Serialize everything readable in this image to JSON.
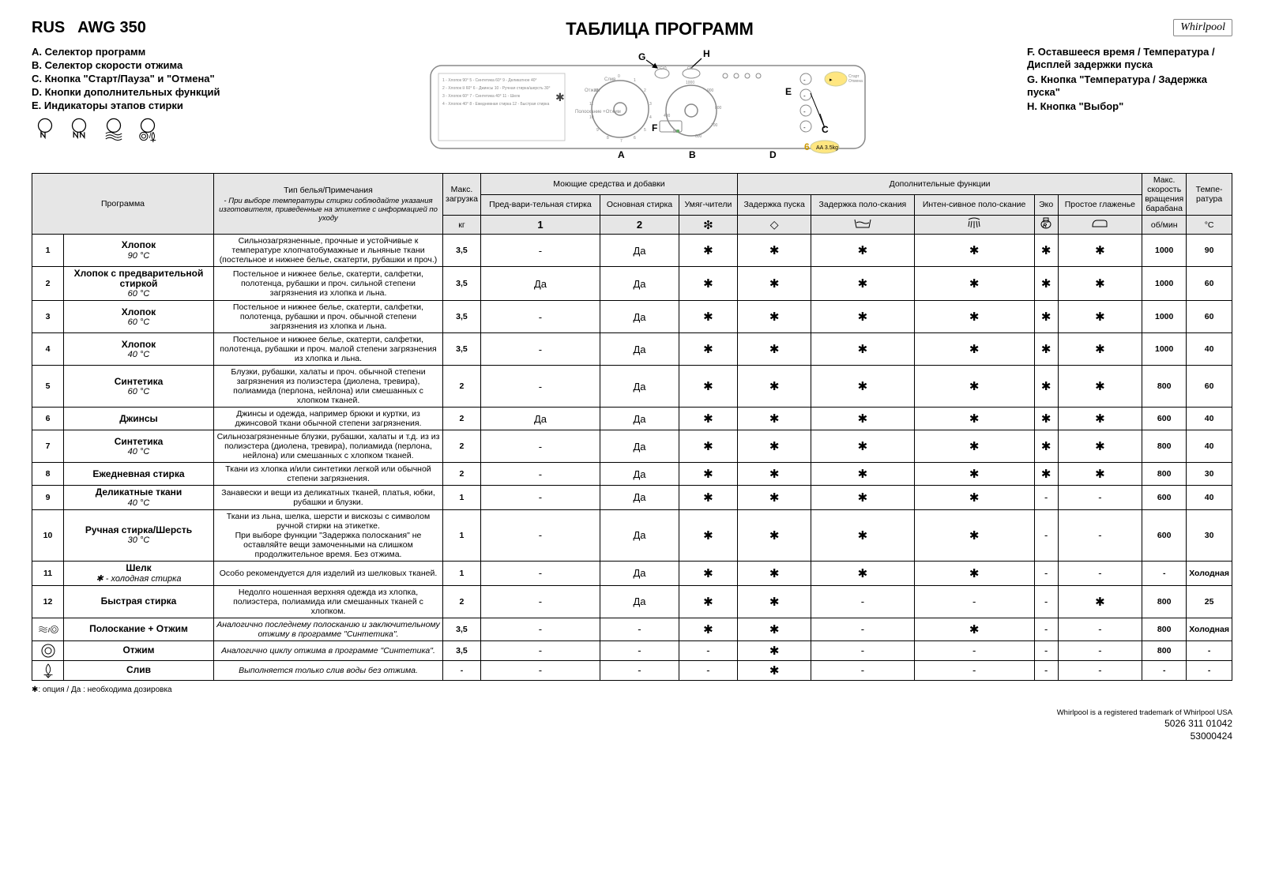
{
  "model_prefix": "RUS",
  "model": "AWG 350",
  "title": "ТАБЛИЦА ПРОГРАММ",
  "logo_text": "Whirlpool",
  "legend_left": {
    "A": "A. Селектор программ",
    "B": "B. Селектор скорости отжима",
    "C": "C. Кнопка \"Старт/Пауза\" и \"Отмена\"",
    "D": "D. Кнопки дополнительных функций",
    "E": "E. Индикаторы этапов стирки"
  },
  "legend_right": {
    "F": "F. Оставшееся время / Температура /Дисплей задержки пуска",
    "G": "G. Кнопка \"Температура / Задержка пуска\"",
    "H": "H. Кнопка \"Выбор\""
  },
  "table_head": {
    "program": "Программа",
    "notes_header": "Тип белья/Примечания",
    "notes_sub": "- При выборе температуры стирки соблюдайте указания изготовителя, приведенные на этикетке с информацией по уходу",
    "load": "Макс. загрузка",
    "load_unit": "кг",
    "detergents": "Моющие средства и добавки",
    "det1": "Пред-вари-тельная стирка",
    "det1n": "1",
    "det2": "Основная стирка",
    "det2n": "2",
    "det3": "Умяг-чители",
    "extras": "Дополнительные функции",
    "ex1": "Задержка пуска",
    "ex2": "Задержка поло-скания",
    "ex3": "Интен-сивное поло-скание",
    "ex4": "Эко",
    "ex5": "Простое глаженье",
    "rpm": "Макс. скорость вращения барабана",
    "rpm_unit": "об/мин",
    "temp": "Темпе-ратура",
    "temp_unit": "°C"
  },
  "icons": {
    "star": "✱",
    "dash": "-",
    "diamond": "◇"
  },
  "rows": [
    {
      "num": "1",
      "name": "Хлопок",
      "temp": "90 °C",
      "notes": "Сильнозагрязненные, прочные и устойчивые к температуре хлопчатобумажные и льняные ткани (постельное и нижнее белье, скатерти, рубашки и проч.)",
      "load": "3,5",
      "c": [
        "-",
        "Да",
        "*",
        "*",
        "*",
        "*",
        "*",
        "*"
      ],
      "rpm": "1000",
      "tc": "90"
    },
    {
      "num": "2",
      "name": "Хлопок с предварительной стиркой",
      "temp": "60 °C",
      "notes": "Постельное и нижнее белье, скатерти, салфетки, полотенца, рубашки и проч. сильной степени загрязнения из хлопка и льна.",
      "load": "3,5",
      "c": [
        "Да",
        "Да",
        "*",
        "*",
        "*",
        "*",
        "*",
        "*"
      ],
      "rpm": "1000",
      "tc": "60"
    },
    {
      "num": "3",
      "name": "Хлопок",
      "temp": "60 °C",
      "notes": "Постельное и нижнее белье, скатерти, салфетки, полотенца, рубашки и проч. обычной степени загрязнения из хлопка и льна.",
      "load": "3,5",
      "c": [
        "-",
        "Да",
        "*",
        "*",
        "*",
        "*",
        "*",
        "*"
      ],
      "rpm": "1000",
      "tc": "60"
    },
    {
      "num": "4",
      "name": "Хлопок",
      "temp": "40 °C",
      "notes": "Постельное и нижнее белье, скатерти, салфетки, полотенца, рубашки и проч. малой степени загрязнения из хлопка и льна.",
      "load": "3,5",
      "c": [
        "-",
        "Да",
        "*",
        "*",
        "*",
        "*",
        "*",
        "*"
      ],
      "rpm": "1000",
      "tc": "40"
    },
    {
      "num": "5",
      "name": "Синтетика",
      "temp": "60 °C",
      "notes": "Блузки, рубашки, халаты и проч. обычной степени загрязнения из полиэстера (диолена, тревира), полиамида (перлона, нейлона) или смешанных с хлопком тканей.",
      "load": "2",
      "c": [
        "-",
        "Да",
        "*",
        "*",
        "*",
        "*",
        "*",
        "*"
      ],
      "rpm": "800",
      "tc": "60"
    },
    {
      "num": "6",
      "name": "Джинсы",
      "temp": "",
      "notes": "Джинсы и одежда, например брюки и куртки, из джинсовой ткани обычной степени загрязнения.",
      "load": "2",
      "c": [
        "Да",
        "Да",
        "*",
        "*",
        "*",
        "*",
        "*",
        "*"
      ],
      "rpm": "600",
      "tc": "40"
    },
    {
      "num": "7",
      "name": "Синтетика",
      "temp": "40 °C",
      "notes": "Сильнозагрязненные блузки, рубашки, халаты и т.д. из из полиэстера (диолена, тревира), полиамида (перлона, нейлона) или смешанных с хлопком тканей.",
      "load": "2",
      "c": [
        "-",
        "Да",
        "*",
        "*",
        "*",
        "*",
        "*",
        "*"
      ],
      "rpm": "800",
      "tc": "40"
    },
    {
      "num": "8",
      "name": "Ежедневная стирка",
      "temp": "",
      "notes": "Ткани из хлопка и/или синтетики легкой или обычной степени загрязнения.",
      "load": "2",
      "c": [
        "-",
        "Да",
        "*",
        "*",
        "*",
        "*",
        "*",
        "*"
      ],
      "rpm": "800",
      "tc": "30"
    },
    {
      "num": "9",
      "name": "Деликатные ткани",
      "temp": "40 °C",
      "notes": "Занавески и вещи из деликатных тканей, платья, юбки, рубашки и блузки.",
      "load": "1",
      "c": [
        "-",
        "Да",
        "*",
        "*",
        "*",
        "*",
        "-",
        "-"
      ],
      "rpm": "600",
      "tc": "40"
    },
    {
      "num": "10",
      "name": "Ручная стирка/Шерсть",
      "temp": "30 °C",
      "notes": "Ткани из льна, шелка, шерсти и вискозы с символом ручной стирки на этикетке.\nПри выборе функции \"Задержка полоскания\" не оставляйте вещи замоченными на слишком продолжительное время. Без отжима.",
      "load": "1",
      "c": [
        "-",
        "Да",
        "*",
        "*",
        "*",
        "*",
        "-",
        "-"
      ],
      "rpm": "600",
      "tc": "30"
    },
    {
      "num": "11",
      "name": "Шелк",
      "temp": "✱ - холодная стирка",
      "notes": "Особо рекомендуется для изделий из шелковых тканей.",
      "load": "1",
      "c": [
        "-",
        "Да",
        "*",
        "*",
        "*",
        "*",
        "-",
        "-"
      ],
      "rpm": "-",
      "tc": "Холодная"
    },
    {
      "num": "12",
      "name": "Быстрая стирка",
      "temp": "",
      "notes": "Недолго ношенная верхняя одежда из хлопка, полиэстера, полиамида или смешанных тканей с хлопком.",
      "load": "2",
      "c": [
        "-",
        "Да",
        "*",
        "*",
        "-",
        "-",
        "-",
        "*"
      ],
      "rpm": "800",
      "tc": "25"
    },
    {
      "num": "R",
      "name": "Полоскание + Отжим",
      "temp": "",
      "notes": "Аналогично последнему полосканию и заключительному отжиму в программе \"Синтетика\".",
      "notes_italic": true,
      "load": "3,5",
      "c": [
        "-",
        "-",
        "*",
        "*",
        "-",
        "*",
        "-",
        "-"
      ],
      "rpm": "800",
      "tc": "Холодная"
    },
    {
      "num": "S",
      "name": "Отжим",
      "temp": "",
      "notes": "Аналогично циклу отжима в программе \"Синтетика\".",
      "notes_italic": true,
      "load": "3,5",
      "c": [
        "-",
        "-",
        "-",
        "*",
        "-",
        "-",
        "-",
        "-"
      ],
      "rpm": "800",
      "tc": "-"
    },
    {
      "num": "D",
      "name": "Слив",
      "temp": "",
      "notes": "Выполняется только слив воды без отжима.",
      "notes_italic": true,
      "load": "-",
      "c": [
        "-",
        "-",
        "-",
        "*",
        "-",
        "-",
        "-",
        "-"
      ],
      "rpm": "-",
      "tc": "-"
    }
  ],
  "footnote": "✱: опция / Да : необходима дозировка",
  "registered": "Whirlpool is a registered trademark of Whirlpool USA",
  "partno1": "5026 311 01042",
  "partno2": "53000424",
  "svg_icons": {
    "rinse": "rinse",
    "spin": "spin",
    "drain": "drain"
  }
}
